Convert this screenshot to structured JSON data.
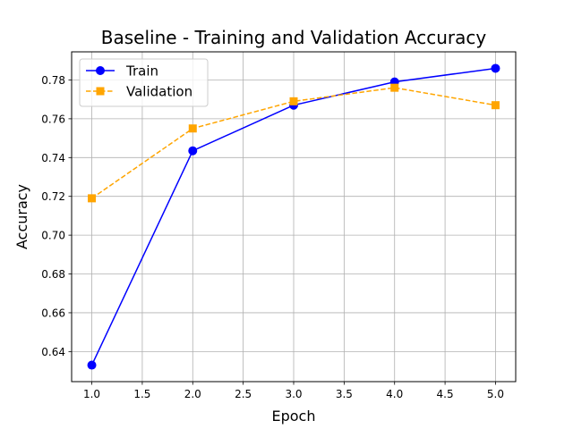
{
  "chart_data": {
    "type": "line",
    "title": "Baseline - Training and Validation Accuracy",
    "xlabel": "Epoch",
    "ylabel": "Accuracy",
    "xlim": [
      0.8,
      5.2
    ],
    "ylim": [
      0.6245,
      0.7945
    ],
    "grid": true,
    "legend_position": "top-left",
    "x_ticks": [
      1.0,
      1.5,
      2.0,
      2.5,
      3.0,
      3.5,
      4.0,
      4.5,
      5.0
    ],
    "x_tick_labels": [
      "1.0",
      "1.5",
      "2.0",
      "2.5",
      "3.0",
      "3.5",
      "4.0",
      "4.5",
      "5.0"
    ],
    "y_ticks": [
      0.64,
      0.66,
      0.68,
      0.7,
      0.72,
      0.74,
      0.76,
      0.78
    ],
    "y_tick_labels": [
      "0.64",
      "0.66",
      "0.68",
      "0.70",
      "0.72",
      "0.74",
      "0.76",
      "0.78"
    ],
    "x": [
      1,
      2,
      3,
      4,
      5
    ],
    "series": [
      {
        "name": "Train",
        "values": [
          0.633,
          0.7435,
          0.767,
          0.779,
          0.786
        ],
        "color": "#0000ff",
        "marker": "circle",
        "linestyle": "solid"
      },
      {
        "name": "Validation",
        "values": [
          0.719,
          0.755,
          0.769,
          0.776,
          0.767
        ],
        "color": "#ffa500",
        "marker": "square",
        "linestyle": "dashed"
      }
    ]
  }
}
